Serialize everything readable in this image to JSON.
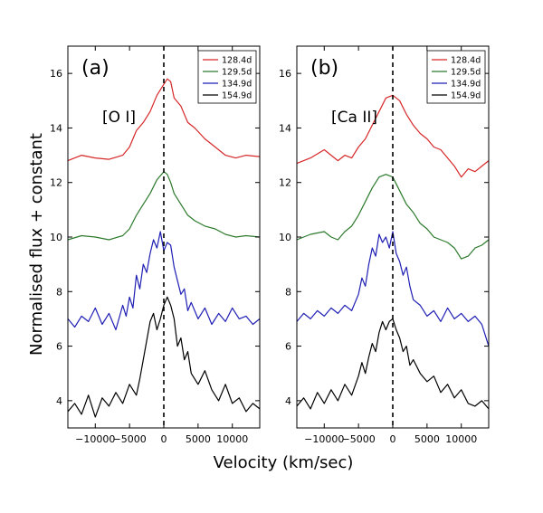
{
  "chart_data": {
    "type": "line",
    "ylabel": "Normalised flux + constant",
    "xlabel": "Velocity (km/sec)",
    "panels": [
      {
        "id": "a",
        "label": "(a)",
        "line": "[O I]",
        "xlim": [
          -14000,
          14000
        ],
        "ylim": [
          3,
          17
        ],
        "xticks": [
          -10000,
          -5000,
          0,
          5000,
          10000
        ],
        "xtick_labels": [
          "−10000",
          "−5000",
          "0",
          "5000",
          "10000"
        ],
        "yticks": [
          4,
          6,
          8,
          10,
          12,
          14,
          16
        ],
        "ytick_labels": [
          "4",
          "6",
          "8",
          "10",
          "12",
          "14",
          "16"
        ],
        "vline": 0,
        "series": [
          {
            "name": "128.4d",
            "color": "#d62728",
            "x": [
              -14000,
              -12000,
              -10000,
              -8000,
              -6000,
              -5000,
              -4000,
              -3000,
              -2000,
              -1000,
              0,
              500,
              1000,
              1500,
              2500,
              3500,
              4500,
              6000,
              7500,
              9000,
              10500,
              12000,
              14000
            ],
            "y": [
              12.8,
              13.0,
              12.9,
              12.85,
              13.0,
              13.3,
              13.9,
              14.2,
              14.6,
              15.2,
              15.6,
              15.8,
              15.7,
              15.1,
              14.8,
              14.2,
              14.0,
              13.6,
              13.3,
              13.0,
              12.9,
              13.0,
              12.95
            ]
          },
          {
            "name": "129.5d",
            "color": "#2c7a2c",
            "x": [
              -14000,
              -12000,
              -10000,
              -8000,
              -6000,
              -5000,
              -4000,
              -3000,
              -2000,
              -1000,
              0,
              500,
              1000,
              1500,
              2500,
              3500,
              4500,
              6000,
              7500,
              9000,
              10500,
              12000,
              14000
            ],
            "y": [
              9.9,
              10.05,
              10.0,
              9.9,
              10.05,
              10.3,
              10.8,
              11.2,
              11.6,
              12.1,
              12.4,
              12.3,
              12.0,
              11.6,
              11.2,
              10.8,
              10.6,
              10.4,
              10.3,
              10.1,
              10.0,
              10.05,
              10.0
            ]
          },
          {
            "name": "134.9d",
            "color": "#1f1fb4",
            "x": [
              -14000,
              -13000,
              -12000,
              -11000,
              -10000,
              -9000,
              -8000,
              -7000,
              -6000,
              -5500,
              -5000,
              -4500,
              -4000,
              -3500,
              -3000,
              -2500,
              -2000,
              -1500,
              -1000,
              -500,
              0,
              500,
              1000,
              1500,
              2000,
              2500,
              3000,
              3500,
              4000,
              5000,
              6000,
              7000,
              8000,
              9000,
              10000,
              11000,
              12000,
              13000,
              14000
            ],
            "y": [
              7.0,
              6.7,
              7.1,
              6.9,
              7.4,
              6.8,
              7.2,
              6.6,
              7.5,
              7.1,
              7.8,
              7.4,
              8.6,
              8.1,
              9.0,
              8.7,
              9.4,
              9.9,
              9.6,
              10.2,
              9.5,
              9.8,
              9.7,
              8.9,
              8.4,
              7.9,
              8.1,
              7.3,
              7.6,
              7.0,
              7.4,
              6.8,
              7.2,
              6.9,
              7.4,
              7.0,
              7.1,
              6.8,
              7.0
            ]
          },
          {
            "name": "154.9d",
            "color": "#000000",
            "x": [
              -14000,
              -13000,
              -12000,
              -11000,
              -10000,
              -9000,
              -8000,
              -7000,
              -6000,
              -5000,
              -4000,
              -3500,
              -3000,
              -2500,
              -2000,
              -1500,
              -1000,
              -500,
              0,
              500,
              1000,
              1500,
              2000,
              2500,
              3000,
              3500,
              4000,
              5000,
              6000,
              7000,
              8000,
              9000,
              10000,
              11000,
              12000,
              13000,
              14000
            ],
            "y": [
              3.6,
              3.9,
              3.5,
              4.2,
              3.4,
              4.1,
              3.8,
              4.3,
              3.9,
              4.6,
              4.2,
              4.8,
              5.5,
              6.2,
              6.9,
              7.2,
              6.6,
              7.0,
              7.5,
              7.8,
              7.5,
              7.0,
              6.0,
              6.3,
              5.5,
              5.8,
              5.0,
              4.6,
              5.1,
              4.4,
              4.0,
              4.6,
              3.9,
              4.1,
              3.6,
              3.9,
              3.7
            ]
          }
        ]
      },
      {
        "id": "b",
        "label": "(b)",
        "line": "[Ca II]",
        "xlim": [
          -14000,
          14000
        ],
        "ylim": [
          3,
          17
        ],
        "xticks": [
          -10000,
          -5000,
          0,
          5000,
          10000
        ],
        "xtick_labels": [
          "−10000",
          "−5000",
          "0",
          "5000",
          "10000"
        ],
        "yticks": [
          4,
          6,
          8,
          10,
          12,
          14,
          16
        ],
        "ytick_labels": [
          "4",
          "6",
          "8",
          "10",
          "12",
          "14",
          "16"
        ],
        "vline": 0,
        "series": [
          {
            "name": "128.4d",
            "color": "#d62728",
            "x": [
              -14000,
              -12000,
              -10000,
              -9000,
              -8000,
              -7000,
              -6000,
              -5000,
              -4000,
              -3000,
              -2000,
              -1000,
              0,
              1000,
              2000,
              3000,
              4000,
              5000,
              6000,
              7000,
              8000,
              9000,
              10000,
              11000,
              12000,
              13000,
              14000
            ],
            "y": [
              12.7,
              12.9,
              13.2,
              13.0,
              12.8,
              13.0,
              12.9,
              13.3,
              13.6,
              14.1,
              14.6,
              15.1,
              15.2,
              15.0,
              14.5,
              14.1,
              13.8,
              13.6,
              13.3,
              13.2,
              12.9,
              12.6,
              12.2,
              12.5,
              12.4,
              12.6,
              12.8
            ]
          },
          {
            "name": "129.5d",
            "color": "#2c7a2c",
            "x": [
              -14000,
              -12000,
              -10000,
              -9000,
              -8000,
              -7000,
              -6000,
              -5000,
              -4000,
              -3000,
              -2000,
              -1000,
              0,
              1000,
              2000,
              3000,
              4000,
              5000,
              6000,
              7000,
              8000,
              9000,
              10000,
              11000,
              12000,
              13000,
              14000
            ],
            "y": [
              9.9,
              10.1,
              10.2,
              10.0,
              9.9,
              10.2,
              10.4,
              10.8,
              11.3,
              11.8,
              12.2,
              12.3,
              12.2,
              11.7,
              11.2,
              10.9,
              10.5,
              10.3,
              10.0,
              9.9,
              9.8,
              9.6,
              9.2,
              9.3,
              9.6,
              9.7,
              9.9
            ]
          },
          {
            "name": "134.9d",
            "color": "#1f1fb4",
            "x": [
              -14000,
              -13000,
              -12000,
              -11000,
              -10000,
              -9000,
              -8000,
              -7000,
              -6000,
              -5000,
              -4500,
              -4000,
              -3500,
              -3000,
              -2500,
              -2000,
              -1500,
              -1000,
              -500,
              0,
              500,
              1000,
              1500,
              2000,
              2500,
              3000,
              4000,
              5000,
              6000,
              7000,
              8000,
              9000,
              10000,
              11000,
              12000,
              13000,
              14000
            ],
            "y": [
              6.9,
              7.2,
              7.0,
              7.3,
              7.1,
              7.4,
              7.2,
              7.5,
              7.3,
              7.9,
              8.5,
              8.2,
              9.0,
              9.6,
              9.3,
              10.1,
              9.8,
              10.0,
              9.6,
              10.2,
              9.4,
              9.1,
              8.6,
              8.9,
              8.2,
              7.7,
              7.5,
              7.1,
              7.3,
              6.9,
              7.4,
              7.0,
              7.2,
              6.9,
              7.1,
              6.8,
              6.0
            ]
          },
          {
            "name": "154.9d",
            "color": "#000000",
            "x": [
              -14000,
              -13000,
              -12000,
              -11000,
              -10000,
              -9000,
              -8000,
              -7000,
              -6000,
              -5000,
              -4500,
              -4000,
              -3500,
              -3000,
              -2500,
              -2000,
              -1500,
              -1000,
              -500,
              0,
              500,
              1000,
              1500,
              2000,
              2500,
              3000,
              4000,
              5000,
              6000,
              7000,
              8000,
              9000,
              10000,
              11000,
              12000,
              13000,
              14000
            ],
            "y": [
              3.8,
              4.1,
              3.7,
              4.3,
              3.9,
              4.4,
              4.0,
              4.6,
              4.2,
              4.9,
              5.4,
              5.0,
              5.6,
              6.1,
              5.8,
              6.5,
              6.9,
              6.6,
              6.9,
              7.0,
              6.6,
              6.3,
              5.8,
              6.0,
              5.3,
              5.5,
              5.0,
              4.7,
              4.9,
              4.3,
              4.6,
              4.1,
              4.4,
              3.9,
              3.8,
              4.0,
              3.7
            ]
          }
        ]
      }
    ]
  }
}
